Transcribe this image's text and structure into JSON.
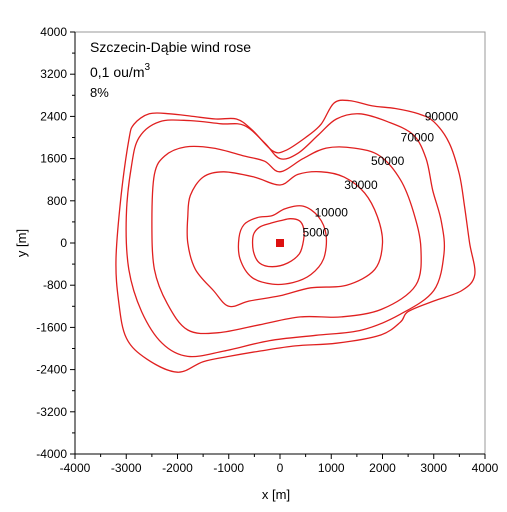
{
  "chart_data": {
    "type": "contour",
    "title": "Szczecin-Dąbie wind rose",
    "concentration_label": "0,1 ou/m",
    "concentration_exp": "3",
    "percentile_label": "8%",
    "xlabel": "x  [m]",
    "ylabel": "y  [m]",
    "xlim": [
      -4000,
      4000
    ],
    "ylim": [
      -4000,
      4000
    ],
    "x_ticks": [
      -4000,
      -3000,
      -2000,
      -1000,
      0,
      1000,
      2000,
      3000,
      4000
    ],
    "y_ticks": [
      -4000,
      -3200,
      -2400,
      -1600,
      -800,
      0,
      800,
      1600,
      2400,
      3200,
      4000
    ],
    "line_color": "#e02020",
    "source": {
      "x": 0,
      "y": 0,
      "color": "#dd1111"
    },
    "contours": [
      {
        "level": "5000",
        "label_at": [
          700,
          200
        ],
        "points": [
          [
            -400,
            300
          ],
          [
            -200,
            370
          ],
          [
            0,
            420
          ],
          [
            200,
            460
          ],
          [
            380,
            420
          ],
          [
            460,
            280
          ],
          [
            460,
            60
          ],
          [
            380,
            -200
          ],
          [
            150,
            -380
          ],
          [
            -150,
            -450
          ],
          [
            -400,
            -380
          ],
          [
            -520,
            -150
          ],
          [
            -520,
            150
          ]
        ]
      },
      {
        "level": "10000",
        "label_at": [
          1000,
          580
        ],
        "points": [
          [
            -700,
            350
          ],
          [
            -450,
            480
          ],
          [
            -150,
            520
          ],
          [
            100,
            650
          ],
          [
            450,
            700
          ],
          [
            750,
            500
          ],
          [
            900,
            150
          ],
          [
            850,
            -300
          ],
          [
            600,
            -600
          ],
          [
            250,
            -750
          ],
          [
            -150,
            -780
          ],
          [
            -550,
            -650
          ],
          [
            -780,
            -300
          ],
          [
            -800,
            100
          ]
        ]
      },
      {
        "level": "30000",
        "label_at": [
          1580,
          1100
        ],
        "points": [
          [
            -1750,
            900
          ],
          [
            -1500,
            1250
          ],
          [
            -1100,
            1350
          ],
          [
            -500,
            1250
          ],
          [
            0,
            1100
          ],
          [
            350,
            1300
          ],
          [
            800,
            1350
          ],
          [
            1250,
            1250
          ],
          [
            1650,
            950
          ],
          [
            1900,
            500
          ],
          [
            2000,
            0
          ],
          [
            1850,
            -500
          ],
          [
            1300,
            -800
          ],
          [
            600,
            -850
          ],
          [
            0,
            -1000
          ],
          [
            -600,
            -1100
          ],
          [
            -1000,
            -1200
          ],
          [
            -1300,
            -900
          ],
          [
            -1650,
            -500
          ],
          [
            -1800,
            0
          ],
          [
            -1800,
            500
          ]
        ]
      },
      {
        "level": "50000",
        "label_at": [
          2100,
          1550
        ],
        "points": [
          [
            -2450,
            1300
          ],
          [
            -2250,
            1650
          ],
          [
            -1850,
            1820
          ],
          [
            -1300,
            1800
          ],
          [
            -700,
            1650
          ],
          [
            -300,
            1550
          ],
          [
            0,
            1350
          ],
          [
            450,
            1600
          ],
          [
            900,
            1800
          ],
          [
            1450,
            1800
          ],
          [
            1950,
            1650
          ],
          [
            2350,
            1200
          ],
          [
            2600,
            600
          ],
          [
            2750,
            -100
          ],
          [
            2650,
            -800
          ],
          [
            2000,
            -1250
          ],
          [
            1200,
            -1400
          ],
          [
            400,
            -1400
          ],
          [
            -400,
            -1550
          ],
          [
            -1200,
            -1700
          ],
          [
            -1800,
            -1650
          ],
          [
            -2200,
            -1150
          ],
          [
            -2450,
            -500
          ],
          [
            -2500,
            400
          ]
        ]
      },
      {
        "level": "70000",
        "label_at": [
          2680,
          2000
        ],
        "points": [
          [
            -2900,
            1450
          ],
          [
            -2750,
            2000
          ],
          [
            -2350,
            2300
          ],
          [
            -1750,
            2320
          ],
          [
            -1150,
            2260
          ],
          [
            -700,
            2230
          ],
          [
            -300,
            1900
          ],
          [
            0,
            1600
          ],
          [
            350,
            1700
          ],
          [
            750,
            2050
          ],
          [
            1100,
            2350
          ],
          [
            1550,
            2450
          ],
          [
            2100,
            2300
          ],
          [
            2600,
            2050
          ],
          [
            2850,
            1600
          ],
          [
            2980,
            1000
          ],
          [
            3150,
            400
          ],
          [
            3200,
            -200
          ],
          [
            3000,
            -900
          ],
          [
            2350,
            -1350
          ],
          [
            1600,
            -1650
          ],
          [
            700,
            -1750
          ],
          [
            -200,
            -1850
          ],
          [
            -1100,
            -2050
          ],
          [
            -1800,
            -2150
          ],
          [
            -2300,
            -1900
          ],
          [
            -2700,
            -1300
          ],
          [
            -2950,
            -500
          ],
          [
            -3000,
            500
          ]
        ]
      },
      {
        "level": "90000",
        "label_at": [
          3150,
          2400
        ],
        "points": [
          [
            -2950,
            1950
          ],
          [
            -2850,
            2250
          ],
          [
            -2550,
            2450
          ],
          [
            -2150,
            2450
          ],
          [
            -1700,
            2400
          ],
          [
            -1250,
            2350
          ],
          [
            -850,
            2350
          ],
          [
            -550,
            2150
          ],
          [
            -150,
            1750
          ],
          [
            100,
            1750
          ],
          [
            500,
            2000
          ],
          [
            800,
            2250
          ],
          [
            1050,
            2650
          ],
          [
            1350,
            2700
          ],
          [
            1800,
            2600
          ],
          [
            2250,
            2550
          ],
          [
            2700,
            2450
          ],
          [
            3000,
            2300
          ],
          [
            3300,
            1900
          ],
          [
            3500,
            1300
          ],
          [
            3600,
            700
          ],
          [
            3700,
            0
          ],
          [
            3800,
            -600
          ],
          [
            3550,
            -900
          ],
          [
            3000,
            -1100
          ],
          [
            2500,
            -1300
          ],
          [
            2350,
            -1500
          ],
          [
            1950,
            -1750
          ],
          [
            1100,
            -1900
          ],
          [
            300,
            -1950
          ],
          [
            -400,
            -2050
          ],
          [
            -1000,
            -2150
          ],
          [
            -1500,
            -2250
          ],
          [
            -2000,
            -2450
          ],
          [
            -2600,
            -2200
          ],
          [
            -3000,
            -1800
          ],
          [
            -3150,
            -1100
          ],
          [
            -3200,
            -300
          ],
          [
            -3100,
            900
          ]
        ]
      }
    ]
  }
}
